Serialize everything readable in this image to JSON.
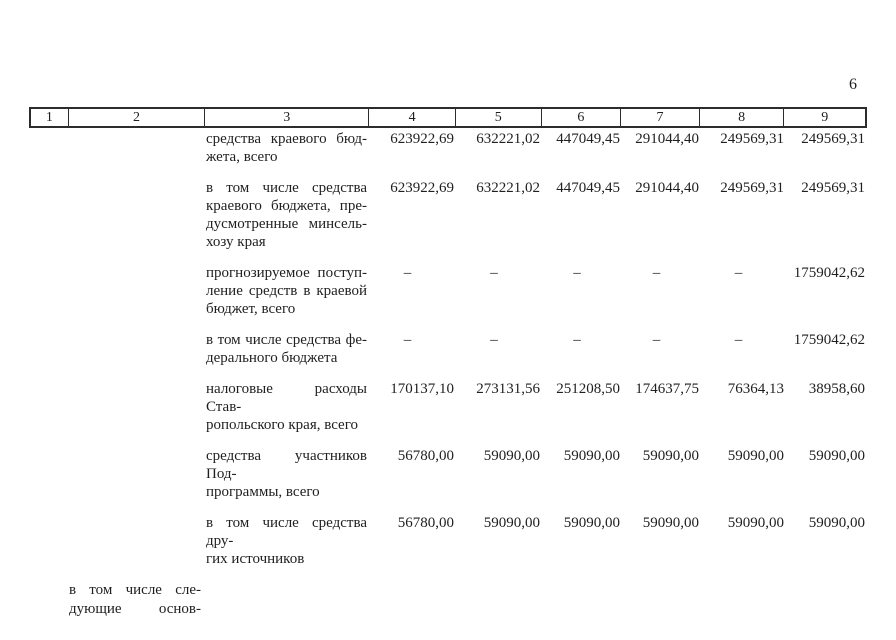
{
  "page": {
    "number": "6"
  },
  "colors": {
    "ink": "#1f1f1f",
    "background": "#ffffff"
  },
  "table": {
    "column_numbers": [
      "1",
      "2",
      "3",
      "4",
      "5",
      "6",
      "7",
      "8",
      "9"
    ],
    "rows": [
      {
        "label_lines": [
          "средства краевого бюд-",
          "жета, всего"
        ],
        "values": [
          "623922,69",
          "632221,02",
          "447049,45",
          "291044,40",
          "249569,31",
          "249569,31"
        ]
      },
      {
        "label_lines": [
          "в том числе средства",
          "краевого бюджета, пре-",
          "дусмотренные минсель-",
          "хозу края"
        ],
        "values": [
          "623922,69",
          "632221,02",
          "447049,45",
          "291044,40",
          "249569,31",
          "249569,31"
        ]
      },
      {
        "label_lines": [
          "прогнозируемое поступ-",
          "ление средств в краевой",
          "бюджет, всего"
        ],
        "values": [
          "–",
          "–",
          "–",
          "–",
          "–",
          "1759042,62"
        ]
      },
      {
        "label_lines": [
          "в том числе средства фе-",
          "дерального бюджета"
        ],
        "values": [
          "–",
          "–",
          "–",
          "–",
          "–",
          "1759042,62"
        ]
      },
      {
        "label_lines": [
          "налоговые расходы Став-",
          "ропольского края, всего"
        ],
        "values": [
          "170137,10",
          "273131,56",
          "251208,50",
          "174637,75",
          "76364,13",
          "38958,60"
        ]
      },
      {
        "label_lines": [
          "средства участников Под-",
          "программы, всего"
        ],
        "values": [
          "56780,00",
          "59090,00",
          "59090,00",
          "59090,00",
          "59090,00",
          "59090,00"
        ]
      },
      {
        "label_lines": [
          "в том числе средства дру-",
          "гих источников"
        ],
        "values": [
          "56780,00",
          "59090,00",
          "59090,00",
          "59090,00",
          "59090,00",
          "59090,00"
        ]
      }
    ]
  },
  "footer": {
    "lines": [
      "в том числе сле-",
      "дующие основ-"
    ]
  }
}
